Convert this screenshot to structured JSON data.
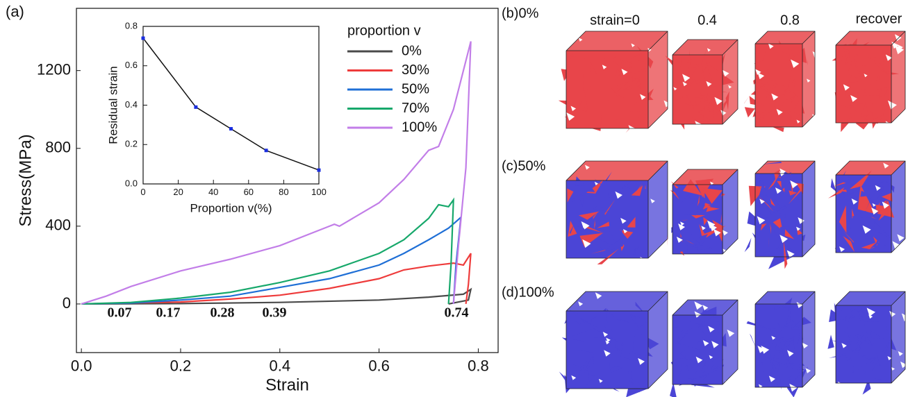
{
  "chart_data": [
    {
      "type": "line",
      "xlabel": "Strain",
      "ylabel": "Stress(MPa)",
      "xlim": [
        -0.01,
        0.84
      ],
      "ylim": [
        -250,
        1520
      ],
      "xticks": [
        {
          "value": 0,
          "label": "0.0"
        },
        0.2,
        0.4,
        0.6,
        0.8
      ],
      "yticks": [
        0,
        400,
        800,
        1200
      ],
      "legend_title": "proportion  v",
      "series": [
        {
          "name": "0%",
          "color": "#4a4a4a",
          "x": [
            0,
            0.2,
            0.4,
            0.6,
            0.7,
            0.77,
            0.785,
            0.78,
            0.74
          ],
          "values": [
            0,
            2,
            8,
            20,
            35,
            50,
            75,
            20,
            0
          ]
        },
        {
          "name": "30%",
          "color": "#ee3b3b",
          "x": [
            0,
            0.2,
            0.3,
            0.4,
            0.5,
            0.6,
            0.65,
            0.7,
            0.75,
            0.77,
            0.785,
            0.78,
            0.775
          ],
          "values": [
            0,
            10,
            25,
            45,
            80,
            130,
            175,
            195,
            210,
            200,
            260,
            100,
            0
          ]
        },
        {
          "name": "50%",
          "color": "#1f6fd6",
          "x": [
            0,
            0.1,
            0.2,
            0.3,
            0.4,
            0.5,
            0.6,
            0.65,
            0.7,
            0.74,
            0.765,
            0.755,
            0.75
          ],
          "values": [
            0,
            5,
            20,
            40,
            85,
            130,
            200,
            260,
            330,
            390,
            445,
            200,
            0
          ]
        },
        {
          "name": "70%",
          "color": "#17a86b",
          "x": [
            0,
            0.1,
            0.2,
            0.3,
            0.4,
            0.5,
            0.6,
            0.65,
            0.7,
            0.72,
            0.74,
            0.75,
            0.745,
            0.74
          ],
          "values": [
            0,
            8,
            30,
            60,
            110,
            170,
            260,
            330,
            440,
            510,
            500,
            535,
            200,
            0
          ]
        },
        {
          "name": "100%",
          "color": "#c27ee8",
          "x": [
            0,
            0.05,
            0.1,
            0.2,
            0.3,
            0.4,
            0.5,
            0.51,
            0.52,
            0.6,
            0.65,
            0.7,
            0.72,
            0.75,
            0.77,
            0.785,
            0.775,
            0.76,
            0.75
          ],
          "values": [
            0,
            40,
            90,
            170,
            230,
            300,
            400,
            410,
            400,
            520,
            640,
            790,
            810,
            1000,
            1200,
            1350,
            700,
            300,
            0
          ]
        }
      ],
      "annotations": [
        {
          "text": "0.07",
          "color": "#9a3c9a"
        },
        {
          "text": "0.17",
          "color": "#11a04a"
        },
        {
          "text": "0.28",
          "color": "#1a3ea8"
        },
        {
          "text": "0.39",
          "color": "#ee2222"
        },
        {
          "text": "0.74",
          "color": "#3a2a1a"
        }
      ]
    },
    {
      "type": "line",
      "xlabel": "Proportion  v(%)",
      "ylabel": "Residual strain",
      "xlim": [
        0,
        100
      ],
      "ylim": [
        0,
        0.8
      ],
      "xticks": [
        0,
        20,
        40,
        60,
        80,
        100
      ],
      "yticks": [
        {
          "value": 0,
          "label": "0.0"
        },
        0.2,
        0.4,
        0.6,
        0.8
      ],
      "series": [
        {
          "color": "#111111",
          "marker_color": "#1a2ee0",
          "x": [
            0,
            30,
            50,
            70,
            100
          ],
          "values": [
            0.74,
            0.39,
            0.28,
            0.17,
            0.07
          ]
        }
      ]
    }
  ],
  "panels": [
    "(a)",
    "(b)0%",
    "(c)50%",
    "(d)100%"
  ],
  "columns": [
    "strain=0",
    "0.4",
    "0.8",
    "recover"
  ]
}
